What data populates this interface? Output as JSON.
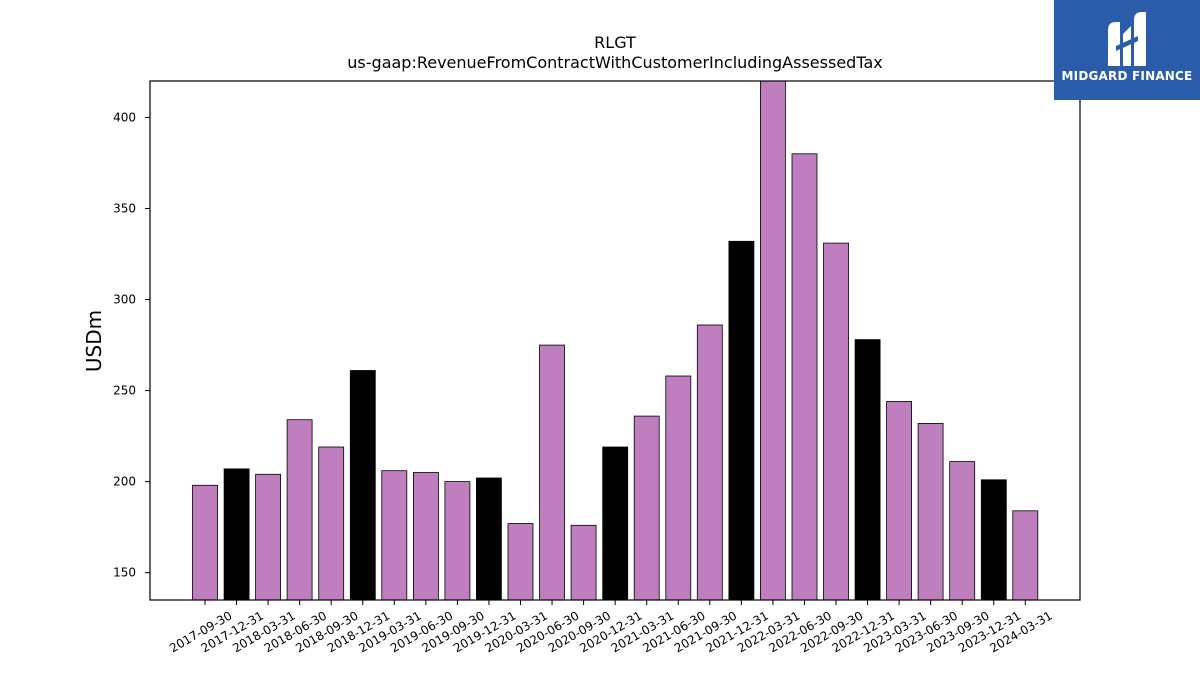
{
  "chart_data": {
    "type": "bar",
    "title": "RLGT",
    "subtitle": "us-gaap:RevenueFromContractWithCustomerIncludingAssessedTax",
    "xlabel": "",
    "ylabel": "USDm",
    "ylim": [
      135,
      420
    ],
    "yticks": [
      150,
      200,
      250,
      300,
      350,
      400
    ],
    "grid": false,
    "categories": [
      "2017-09-30",
      "2017-12-31",
      "2018-03-31",
      "2018-06-30",
      "2018-09-30",
      "2018-12-31",
      "2019-03-31",
      "2019-06-30",
      "2019-09-30",
      "2019-12-31",
      "2020-03-31",
      "2020-06-30",
      "2020-09-30",
      "2020-12-31",
      "2021-03-31",
      "2021-06-30",
      "2021-09-30",
      "2021-12-31",
      "2022-03-31",
      "2022-06-30",
      "2022-09-30",
      "2022-12-31",
      "2023-03-31",
      "2023-06-30",
      "2023-09-30",
      "2023-12-31",
      "2024-03-31"
    ],
    "values": [
      198,
      207,
      204,
      234,
      219,
      261,
      206,
      205,
      200,
      202,
      177,
      275,
      176,
      219,
      236,
      258,
      286,
      332,
      421,
      380,
      331,
      278,
      244,
      232,
      211,
      201,
      184
    ],
    "colors": {
      "quarter": "#bf7fbf",
      "year_end": "#000000",
      "edge": "#000000"
    }
  },
  "logo": {
    "text": "MIDGARD FINANCE",
    "background": "#2a5caa"
  }
}
